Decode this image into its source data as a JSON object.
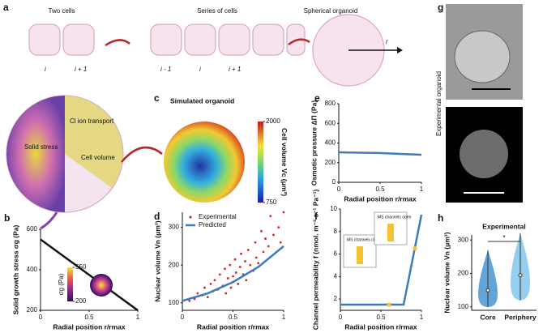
{
  "diagram": {
    "panel": "a",
    "two_cells": "Two cells",
    "series_of_cells": "Series of cells",
    "spherical_organoid": "Spherical organoid",
    "cell_labels": [
      "i",
      "i + 1",
      "i - 1",
      "i",
      "i + 1"
    ],
    "radius": "r",
    "solid_stress": "Solid stress",
    "ion_transport": "Cl ion transport",
    "cell_volume": "Cell volume"
  },
  "image_panel": {
    "panel": "g",
    "label": "Experimental organoid"
  },
  "chart_data": [
    {
      "panel": "b",
      "type": "line",
      "x_label": "Radial position r/rmax",
      "y_label": "Solid growth stress σg (Pa)",
      "xlim": [
        0,
        1
      ],
      "ylim": [
        200,
        600
      ],
      "xticks": [
        0,
        0.5,
        1
      ],
      "yticks": [
        200,
        400,
        600
      ],
      "series": [
        {
          "color": "#111111",
          "x": [
            0,
            1
          ],
          "values": [
            550,
            200
          ]
        }
      ],
      "colorbar": {
        "label": "σg (Pa)",
        "clim": [
          200,
          550
        ],
        "ticks": [
          550,
          200
        ]
      }
    },
    {
      "panel": "c",
      "type": "sphere",
      "title": "Simulated organoid",
      "colorbar": {
        "label": "Cell volume Vc (μm³)",
        "clim": [
          750,
          2000
        ],
        "ticks": [
          2000,
          750
        ]
      }
    },
    {
      "panel": "d",
      "type": "line",
      "x_label": "Radial position r/rmax",
      "y_label": "Nuclear volume Vn (μm³)",
      "xlim": [
        0,
        1
      ],
      "ylim": [
        80,
        340
      ],
      "xticks": [
        0,
        0.5,
        1
      ],
      "yticks": [
        100,
        200,
        300
      ],
      "series": [
        {
          "name": "Experimental",
          "kind": "points",
          "color": "#d9262b",
          "x": [
            0.07,
            0.12,
            0.15,
            0.2,
            0.22,
            0.25,
            0.28,
            0.3,
            0.32,
            0.35,
            0.37,
            0.4,
            0.42,
            0.43,
            0.45,
            0.47,
            0.48,
            0.5,
            0.5,
            0.52,
            0.53,
            0.55,
            0.57,
            0.58,
            0.6,
            0.62,
            0.63,
            0.65,
            0.67,
            0.7,
            0.72,
            0.73,
            0.75,
            0.78,
            0.8,
            0.82,
            0.85,
            0.87,
            0.9,
            0.95,
            0.97,
            1.0
          ],
          "values": [
            105,
            110,
            125,
            120,
            140,
            115,
            150,
            130,
            160,
            135,
            175,
            145,
            190,
            125,
            165,
            200,
            140,
            170,
            155,
            215,
            180,
            150,
            195,
            230,
            175,
            210,
            160,
            240,
            200,
            185,
            260,
            220,
            205,
            290,
            235,
            270,
            250,
            330,
            280,
            300,
            260,
            340
          ]
        },
        {
          "name": "Predicted",
          "color": "#3a7cc0",
          "x": [
            0,
            0.25,
            0.5,
            0.75,
            1
          ],
          "values": [
            105,
            125,
            155,
            195,
            250
          ]
        }
      ]
    },
    {
      "panel": "e",
      "type": "line",
      "x_label": "Radial position r/rmax",
      "y_label": "Osmotic pressure ΔΠ (Pa)",
      "xlim": [
        0,
        1
      ],
      "ylim": [
        0,
        800
      ],
      "xticks": [
        0,
        0.5,
        1
      ],
      "yticks": [
        0,
        200,
        400,
        600,
        800
      ],
      "series": [
        {
          "color": "#3a7cc0",
          "x": [
            0,
            0.5,
            1
          ],
          "values": [
            305,
            298,
            280
          ]
        }
      ]
    },
    {
      "panel": "f",
      "type": "line",
      "x_label": "Radial position r/rmax",
      "y_label": "Channel permeability f (nmol. m⁻² s⁻¹ Pa⁻¹)",
      "xlim": [
        0,
        1
      ],
      "ylim": [
        1,
        10
      ],
      "xticks": [
        0,
        0.5,
        1
      ],
      "yticks": [
        2,
        4,
        6,
        8,
        10
      ],
      "annotations": [
        "MS channels closed",
        "MS channels open"
      ],
      "series": [
        {
          "color": "#3a7cc0",
          "x": [
            0,
            0.78,
            1
          ],
          "values": [
            1.5,
            1.5,
            9.5
          ]
        },
        {
          "kind": "points",
          "color": "#f2c230",
          "x": [
            0.6,
            0.92
          ],
          "values": [
            1.5,
            6.5
          ]
        }
      ]
    },
    {
      "panel": "h",
      "type": "violin",
      "title": "Experimental",
      "y_label": "Nuclear volume Vn (μm³)",
      "ylim": [
        90,
        315
      ],
      "yticks": [
        100,
        200,
        300
      ],
      "categories": [
        "Core",
        "Periphery"
      ],
      "colors": [
        "#3d8fd0",
        "#7cc3ea"
      ],
      "min": [
        100,
        120
      ],
      "median": [
        150,
        195
      ],
      "max": [
        270,
        320
      ],
      "significance": "*"
    }
  ]
}
